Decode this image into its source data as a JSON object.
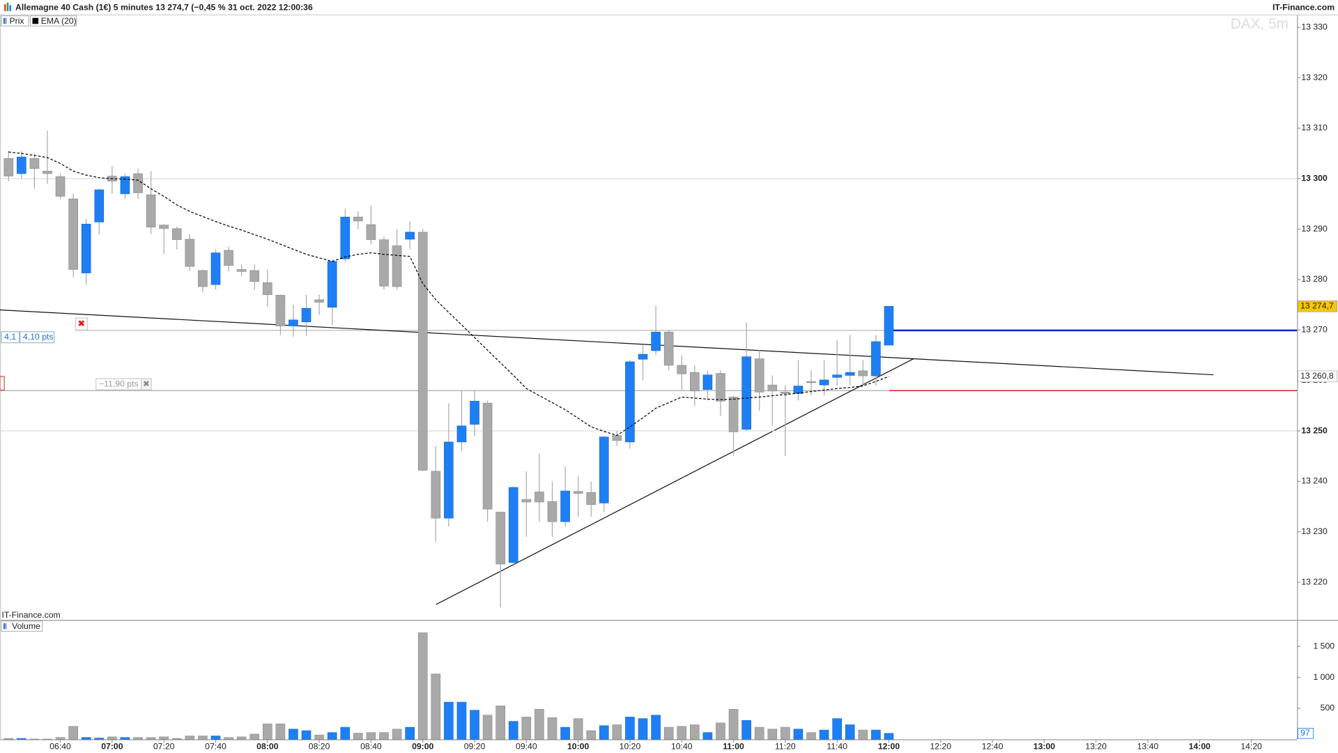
{
  "chart_data": [
    {
      "type": "candlestick",
      "title": "Allemagne 40 Cash (1€) 5 minutes 13 274,7 (−0,45 % 31 oct. 2022 12:00:36",
      "credit": "IT-Finance.com",
      "watermark": "DAX, 5m",
      "series": [
        {
          "name": "Prix",
          "color": "#1e7ff5",
          "down_color": "#a9a9a9",
          "open": [
            13304,
            13301,
            13304,
            13301.5,
            13300.4,
            13296,
            13281.3,
            13291.4,
            13300.5,
            13297,
            13301,
            13296.8,
            13290.8,
            13290.1,
            13288,
            13281.8,
            13279,
            13285.8,
            13282,
            13281.8,
            13279.4,
            13276.9,
            13270.8,
            13271.6,
            13276,
            13274.5,
            13284.1,
            13292.4,
            13290.9,
            13287.9,
            13286.7,
            13288,
            13289.4,
            13242,
            13232.7,
            13247.8,
            13251.3,
            13255.5,
            13233.9,
            13223.9,
            13236.4,
            13237.9,
            13236,
            13232,
            13238,
            13237.8,
            13235.7,
            13249.1,
            13247.8,
            13264.2,
            13265.9,
            13269.6,
            13263,
            13261.6,
            13258.2,
            13261.4,
            13256.7,
            13250.3,
            13264.3,
            13259.1,
            13257.7,
            13257.4,
            13259.8,
            13259.1,
            13260.6,
            13261,
            13261.9,
            13260.9,
            13267
          ],
          "high": [
            13305.5,
            13305.5,
            13305,
            13309.5,
            13301,
            13297,
            13292,
            13298,
            13302.5,
            13301,
            13302,
            13301.5,
            13291,
            13290.5,
            13289,
            13282,
            13286,
            13286.5,
            13283,
            13283,
            13282,
            13277,
            13275,
            13277,
            13277,
            13284,
            13294,
            13293.5,
            13294.7,
            13288.5,
            13290,
            13291.5,
            13290,
            13247,
            13255.5,
            13258,
            13258,
            13256,
            13234,
            13239,
            13242,
            13245.5,
            13240,
            13243,
            13241,
            13240,
            13249,
            13250,
            13264,
            13267,
            13274.8,
            13270,
            13265,
            13263,
            13262,
            13262,
            13257,
            13271.5,
            13266,
            13261,
            13259,
            13264,
            13262,
            13264,
            13268,
            13269,
            13264,
            13269,
            13274.7
          ],
          "low": [
            13299.5,
            13300,
            13298,
            13299,
            13296,
            13280.5,
            13279,
            13289,
            13297,
            13296,
            13296,
            13289,
            13285,
            13286,
            13281.7,
            13277.5,
            13278,
            13281.6,
            13280.6,
            13278,
            13274.6,
            13269,
            13268.7,
            13268.9,
            13273,
            13271,
            13283.5,
            13290,
            13287,
            13278,
            13278,
            13286,
            13242,
            13228,
            13231,
            13246,
            13249,
            13232,
            13215,
            13223,
            13229,
            13232,
            13229,
            13231,
            13233,
            13233,
            13234,
            13247,
            13246.5,
            13260,
            13265,
            13262,
            13258,
            13255,
            13256,
            13253,
            13245,
            13250,
            13254,
            13251,
            13245,
            13256,
            13257,
            13257,
            13259,
            13259,
            13259,
            13259,
            13267
          ],
          "close": [
            13300.5,
            13304.3,
            13302,
            13301,
            13296.5,
            13282,
            13291,
            13297.8,
            13299.5,
            13300.4,
            13297.2,
            13290.4,
            13290.1,
            13287.9,
            13282.6,
            13278.6,
            13285.3,
            13282.8,
            13281.6,
            13279.6,
            13277,
            13270.8,
            13272,
            13274.3,
            13275.5,
            13283.6,
            13292.4,
            13291.6,
            13287.9,
            13278.7,
            13278.6,
            13289.4,
            13242.2,
            13232.7,
            13247.8,
            13251,
            13255.9,
            13234.5,
            13223.6,
            13238.8,
            13235.9,
            13235.9,
            13232,
            13238.1,
            13237.6,
            13235.4,
            13248.8,
            13248.1,
            13263.7,
            13265.2,
            13269.6,
            13263,
            13261.3,
            13257.9,
            13261.1,
            13255.9,
            13249.8,
            13264.7,
            13257.7,
            13257.9,
            13257.4,
            13258.9,
            13259.6,
            13260.1,
            13261.1,
            13261.6,
            13260.9,
            13267.7,
            13274.7
          ]
        },
        {
          "name": "EMA (20)",
          "color": "#000000",
          "values": [
            13305.3,
            13305,
            13304.6,
            13304.2,
            13303,
            13301.5,
            13300.7,
            13300.2,
            13300,
            13299.9,
            13299.7,
            13298,
            13296.5,
            13294.8,
            13293.5,
            13292.5,
            13291.5,
            13290.6,
            13289.8,
            13288.9,
            13288,
            13287,
            13286,
            13285,
            13284.3,
            13283.6,
            13284.5,
            13285,
            13285.3,
            13285,
            13284.8,
            13284.6,
            13279.2,
            13276,
            13273.5,
            13271,
            13268.5,
            13266,
            13263.5,
            13261,
            13258.4,
            13257,
            13255.6,
            13254.2,
            13252.5,
            13250.8,
            13249.9,
            13249.1,
            13250.8,
            13252.6,
            13254.5,
            13255.6,
            13256.7,
            13256.5,
            13256.3,
            13256.2,
            13256.3,
            13256.5,
            13256.7,
            13257,
            13257.2,
            13257.5,
            13257.8,
            13258.1,
            13258.4,
            13258.6,
            13258.9,
            13259.8,
            13260.8
          ]
        }
      ],
      "price_tags": [
        {
          "value": 13274.7,
          "label": "13 274,7",
          "color": "#f7c600"
        },
        {
          "value": 13260.8,
          "label": "13 260,8",
          "color": "#ffffff"
        }
      ],
      "annotations": [
        "4,1",
        "4,10 pts",
        "−11,90 pts"
      ],
      "xlim": [
        -0.66,
        99.53
      ],
      "ylim": [
        13212.55,
        13332.37
      ],
      "yticks": [
        {
          "value": 13220,
          "label": "13 220"
        },
        {
          "value": 13230,
          "label": "13 230"
        },
        {
          "value": 13240,
          "label": "13 240"
        },
        {
          "value": 13250,
          "label": "13 250"
        },
        {
          "value": 13260,
          "label": "13 260"
        },
        {
          "value": 13270,
          "label": "13 270"
        },
        {
          "value": 13280,
          "label": "13 280"
        },
        {
          "value": 13290,
          "label": "13 290"
        },
        {
          "value": 13300,
          "label": "13 300"
        },
        {
          "value": 13310,
          "label": "13 310"
        },
        {
          "value": 13320,
          "label": "13 320"
        },
        {
          "value": 13330,
          "label": "13 330"
        }
      ]
    },
    {
      "type": "bar",
      "series": [
        {
          "name": "Volume",
          "values": [
            15,
            15,
            5,
            5,
            30,
            210,
            30,
            20,
            40,
            30,
            30,
            30,
            40,
            15,
            55,
            55,
            55,
            30,
            40,
            85,
            250,
            250,
            165,
            140,
            70,
            110,
            195,
            100,
            110,
            110,
            165,
            195,
            1720,
            1055,
            600,
            600,
            470,
            390,
            540,
            290,
            360,
            485,
            350,
            195,
            335,
            140,
            220,
            235,
            360,
            335,
            390,
            195,
            210,
            235,
            110,
            265,
            485,
            305,
            195,
            165,
            195,
            165,
            110,
            150,
            335,
            235,
            150,
            150,
            97
          ]
        }
      ],
      "xlim": [
        -0.66,
        99.53
      ],
      "ylim": [
        0,
        1915
      ],
      "yticks": [
        500,
        {
          "value": 1000,
          "label": "1 000"
        },
        {
          "value": 1500,
          "label": "1 500"
        }
      ],
      "xticks": [
        {
          "value": 4,
          "label": "06:40"
        },
        {
          "value": 8,
          "label": "07:00"
        },
        {
          "value": 12,
          "label": "07:20"
        },
        {
          "value": 16,
          "label": "07:40"
        },
        {
          "value": 20,
          "label": "08:00"
        },
        {
          "value": 24,
          "label": "08:20"
        },
        {
          "value": 28,
          "label": "08:40"
        },
        {
          "value": 32,
          "label": "09:00"
        },
        {
          "value": 36,
          "label": "09:20"
        },
        {
          "value": 40,
          "label": "09:40"
        },
        {
          "value": 44,
          "label": "10:00"
        },
        {
          "value": 48,
          "label": "10:20"
        },
        {
          "value": 52,
          "label": "10:40"
        },
        {
          "value": 56,
          "label": "11:00"
        },
        {
          "value": 60,
          "label": "11:20"
        },
        {
          "value": 64,
          "label": "11:40"
        },
        {
          "value": 68,
          "label": "12:00"
        },
        {
          "value": 72,
          "label": "12:20"
        },
        {
          "value": 76,
          "label": "12:40"
        },
        {
          "value": 80,
          "label": "13:00"
        },
        {
          "value": 84,
          "label": "13:20"
        },
        {
          "value": 88,
          "label": "13:40"
        },
        {
          "value": 92,
          "label": "14:00"
        },
        {
          "value": 96,
          "label": "14:20"
        }
      ]
    }
  ]
}
